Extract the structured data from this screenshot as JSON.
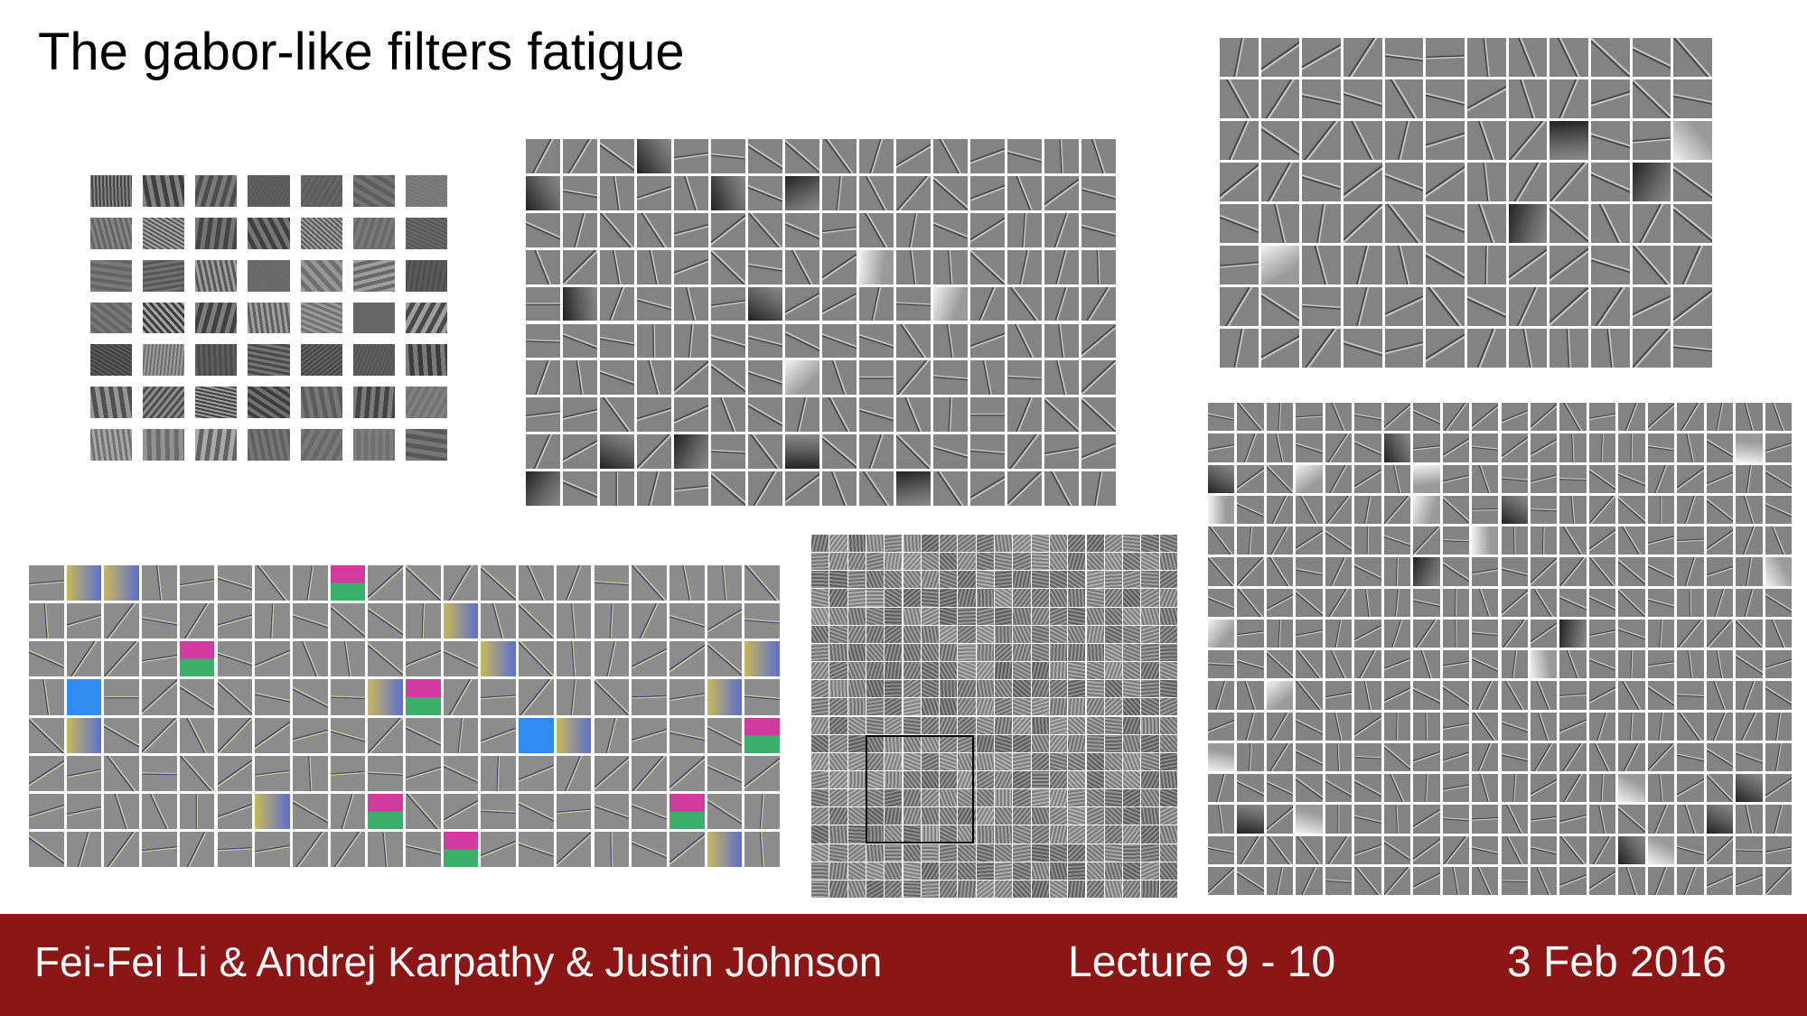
{
  "slide": {
    "title": "The gabor-like filters fatigue",
    "footer": {
      "authors": "Fei-Fei Li & Andrej Karpathy & Justin Johnson",
      "lecture": "Lecture 9 - 10",
      "date": "3 Feb 2016"
    }
  },
  "filter_grids": [
    {
      "name": "grayscale-filter-grid-small",
      "rows": 7,
      "cols": 7,
      "style": "gray-texture"
    },
    {
      "name": "grayscale-filter-grid-center",
      "rows": 10,
      "cols": 16,
      "style": "gray-edge"
    },
    {
      "name": "grayscale-filter-grid-top-right",
      "rows": 8,
      "cols": 12,
      "style": "gray-edge"
    },
    {
      "name": "color-filter-grid",
      "rows": 8,
      "cols": 20,
      "style": "color-edge"
    },
    {
      "name": "topographic-filter-map",
      "rows": 20,
      "cols": 20,
      "style": "gray-dense"
    },
    {
      "name": "grayscale-filter-grid-bottom-right",
      "rows": 16,
      "cols": 20,
      "style": "gray-edge"
    }
  ]
}
